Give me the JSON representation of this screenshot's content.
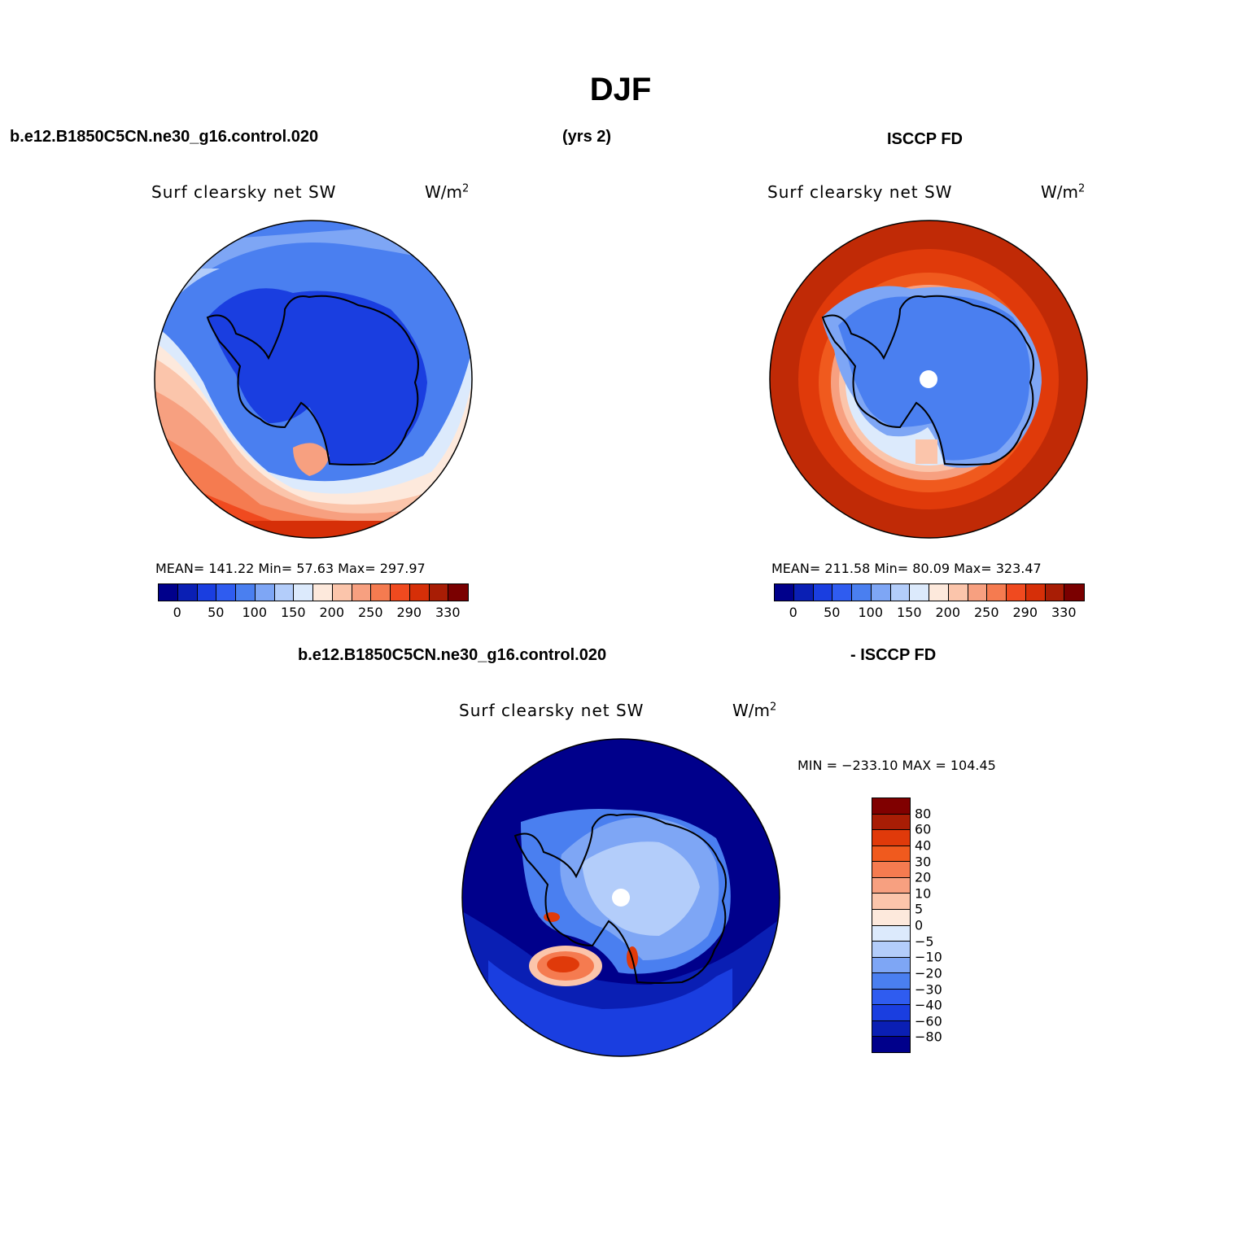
{
  "title": "DJF",
  "header": {
    "left": "b.e12.B1850C5CN.ne30_g16.control.020",
    "middle": "(yrs 2)",
    "right": "ISCCP FD"
  },
  "diff_header": {
    "left": "b.e12.B1850C5CN.ne30_g16.control.020",
    "right": "- ISCCP FD"
  },
  "panels": [
    {
      "id": "model",
      "title": "Surf clearsky net SW",
      "units": "W/m",
      "units_sup": "2",
      "stats": "MEAN= 141.22   Min=   57.63   Max= 297.97"
    },
    {
      "id": "obs",
      "title": "Surf clearsky net SW",
      "units": "W/m",
      "units_sup": "2",
      "stats": "MEAN= 211.58   Min=   80.09   Max= 323.47"
    },
    {
      "id": "diff",
      "title": "Surf clearsky net SW",
      "units": "W/m",
      "units_sup": "2",
      "stats": "MIN = −233.10 MAX = 104.45"
    }
  ],
  "colorbar_abs": {
    "colors": [
      "#00008b",
      "#0a1fb4",
      "#1a3ee0",
      "#2f5cf0",
      "#4a7ff0",
      "#7ea6f5",
      "#b3cdfa",
      "#dceafc",
      "#fde9dc",
      "#fbc5ab",
      "#f7a080",
      "#f57b50",
      "#f04a1f",
      "#d62f08",
      "#a81d05",
      "#7a0000"
    ],
    "ticks": [
      "0",
      "50",
      "100",
      "150",
      "200",
      "250",
      "290",
      "330"
    ]
  },
  "colorbar_diff": {
    "colors": [
      "#800000",
      "#a81d05",
      "#e03a0a",
      "#f05a1e",
      "#f57b50",
      "#f7a080",
      "#fbc5ab",
      "#fde9dc",
      "#dceafc",
      "#b3cdfa",
      "#7ea6f5",
      "#4a7ff0",
      "#2f5cf0",
      "#1a3ee0",
      "#0a1fb4",
      "#00008b"
    ],
    "ticks": [
      "80",
      "60",
      "40",
      "30",
      "20",
      "10",
      "5",
      "0",
      "−5",
      "−10",
      "−20",
      "−30",
      "−40",
      "−60",
      "−80"
    ]
  }
}
